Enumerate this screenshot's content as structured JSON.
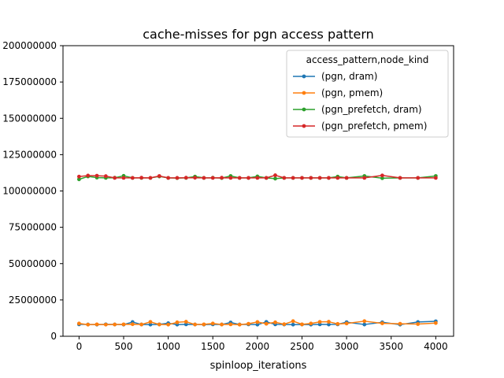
{
  "chart_data": {
    "type": "line",
    "title": "cache-misses for pgn access pattern",
    "xlabel": "spinloop_iterations",
    "ylabel": "",
    "xlim": [
      -180,
      4200
    ],
    "ylim": [
      0,
      200000000
    ],
    "xticks": [
      0,
      500,
      1000,
      1500,
      2000,
      2500,
      3000,
      3500,
      4000
    ],
    "xtick_labels": [
      "0",
      "500",
      "1000",
      "1500",
      "2000",
      "2500",
      "3000",
      "3500",
      "4000"
    ],
    "yticks": [
      0,
      25000000,
      50000000,
      75000000,
      100000000,
      125000000,
      150000000,
      175000000,
      200000000
    ],
    "ytick_labels": [
      "0",
      "25000000",
      "50000000",
      "75000000",
      "100000000",
      "125000000",
      "150000000",
      "175000000",
      "200000000"
    ],
    "grid": false,
    "legend": {
      "title": "access_pattern,node_kind",
      "placement": "top-right"
    },
    "x": [
      0,
      100,
      200,
      300,
      400,
      500,
      600,
      700,
      800,
      900,
      1000,
      1100,
      1200,
      1300,
      1400,
      1500,
      1600,
      1700,
      1800,
      1900,
      2000,
      2100,
      2200,
      2300,
      2400,
      2500,
      2600,
      2700,
      2800,
      2900,
      3000,
      3200,
      3400,
      3600,
      3800,
      4000
    ],
    "series": [
      {
        "name": "(pgn, dram)",
        "color": "#1f77b4",
        "values": [
          8200000,
          8100000,
          8000000,
          8200000,
          8100000,
          8000000,
          9800000,
          8100000,
          8000000,
          8200000,
          9000000,
          8000000,
          8200000,
          8100000,
          8000000,
          8200000,
          8100000,
          9500000,
          8100000,
          8200000,
          8000000,
          9900000,
          8200000,
          8100000,
          8000000,
          8100000,
          8000000,
          8200000,
          8100000,
          8200000,
          9700000,
          8100000,
          9600000,
          8000000,
          9800000,
          10300000
        ]
      },
      {
        "name": "(pgn, pmem)",
        "color": "#ff7f0e",
        "values": [
          8800000,
          8000000,
          8200000,
          8000000,
          8100000,
          8200000,
          8300000,
          8100000,
          9900000,
          8100000,
          8000000,
          9600000,
          10000000,
          8100000,
          8200000,
          8800000,
          8100000,
          8200000,
          8000000,
          8600000,
          9800000,
          8600000,
          9600000,
          8300000,
          10400000,
          8200000,
          8800000,
          9900000,
          10000000,
          8500000,
          8800000,
          10400000,
          8900000,
          8600000,
          8400000,
          9100000
        ]
      },
      {
        "name": "(pgn_prefetch, dram)",
        "color": "#2ca02c",
        "values": [
          108000000,
          110000000,
          109200000,
          109000000,
          109100000,
          110400000,
          109000000,
          109000000,
          109000000,
          110000000,
          109000000,
          108900000,
          109000000,
          109900000,
          109000000,
          109100000,
          108900000,
          110300000,
          109000000,
          109000000,
          110000000,
          109000000,
          108500000,
          109000000,
          109000000,
          109000000,
          109000000,
          109000000,
          109000000,
          109900000,
          109000000,
          110300000,
          108800000,
          109000000,
          109000000,
          110300000
        ]
      },
      {
        "name": "(pgn_prefetch, pmem)",
        "color": "#d62728",
        "values": [
          109900000,
          110600000,
          110500000,
          110200000,
          109000000,
          109000000,
          109000000,
          109100000,
          109000000,
          110300000,
          109000000,
          109000000,
          109100000,
          109100000,
          109000000,
          109000000,
          109100000,
          109000000,
          109000000,
          109000000,
          109000000,
          109000000,
          110800000,
          109000000,
          109000000,
          109000000,
          109000000,
          109000000,
          109000000,
          109000000,
          109000000,
          109000000,
          110700000,
          109000000,
          109000000,
          109000000
        ]
      }
    ]
  }
}
